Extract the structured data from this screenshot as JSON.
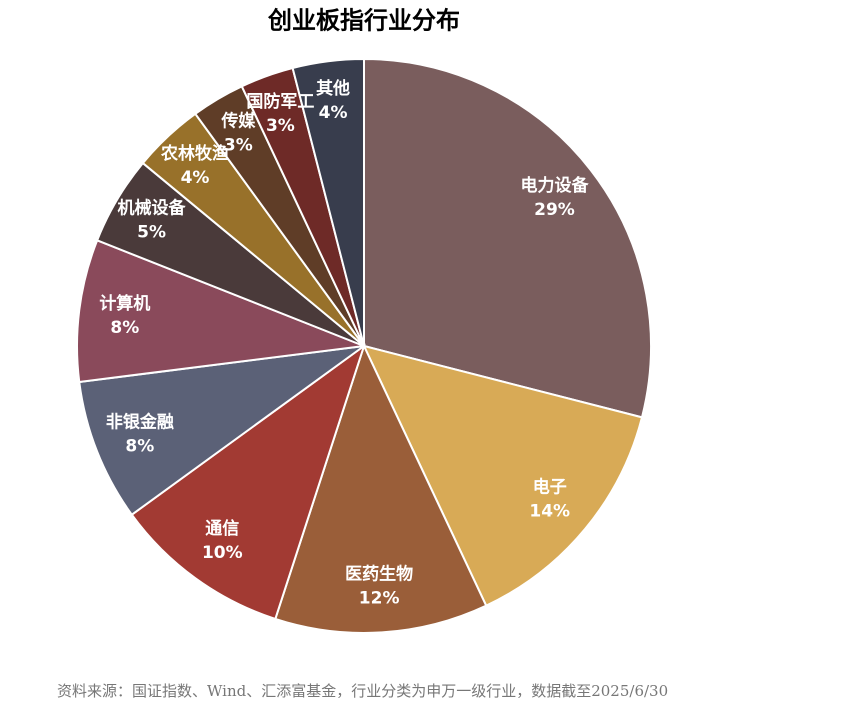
{
  "chart_data": {
    "type": "pie",
    "title": "创业板指行业分布",
    "categories": [
      "电力设备",
      "电子",
      "医药生物",
      "通信",
      "非银金融",
      "计算机",
      "机械设备",
      "农林牧渔",
      "传媒",
      "国防军工",
      "其他"
    ],
    "values": [
      29,
      14,
      12,
      10,
      8,
      8,
      5,
      4,
      3,
      3,
      4
    ],
    "value_labels": [
      "29%",
      "14%",
      "12%",
      "10%",
      "8%",
      "8%",
      "5%",
      "4%",
      "3%",
      "3%",
      "4%"
    ],
    "colors": [
      "#7a5d5d",
      "#d8aa56",
      "#9a5e39",
      "#a23a33",
      "#5b6177",
      "#8a4a5b",
      "#4a3a3a",
      "#98712a",
      "#5f3d27",
      "#6e2a27",
      "#383d4d"
    ],
    "note": "资料来源：国证指数、Wind、汇添富基金，行业分类为申万一级行业，数据截至2025/6/30"
  }
}
